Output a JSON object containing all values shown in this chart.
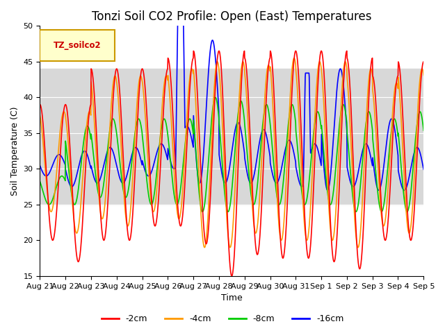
{
  "title": "Tonzi Soil CO2 Profile: Open (East) Temperatures",
  "xlabel": "Time",
  "ylabel": "Soil Temperature (C)",
  "ylim": [
    15,
    50
  ],
  "yticks": [
    15,
    20,
    25,
    30,
    35,
    40,
    45,
    50
  ],
  "x_labels": [
    "Aug 21",
    "Aug 22",
    "Aug 23",
    "Aug 24",
    "Aug 25",
    "Aug 26",
    "Aug 27",
    "Aug 28",
    "Aug 29",
    "Aug 30",
    "Aug 31",
    "Sep 1",
    "Sep 2",
    "Sep 3",
    "Sep 4",
    "Sep 5"
  ],
  "colors": {
    "-2cm": "#ff0000",
    "-4cm": "#ff9900",
    "-8cm": "#00cc00",
    "-16cm": "#0000ff"
  },
  "legend_label": "TZ_soilco2",
  "legend_bg": "#ffffcc",
  "legend_edge": "#cc9900",
  "shade_low": 25,
  "shade_high": 44,
  "shade_color": "#d8d8d8",
  "background_color": "#ffffff",
  "num_days": 15,
  "points_per_day": 96,
  "title_fontsize": 12,
  "axis_label_fontsize": 9,
  "tick_fontsize": 8,
  "legend_fontsize": 9,
  "line_width": 1.2
}
